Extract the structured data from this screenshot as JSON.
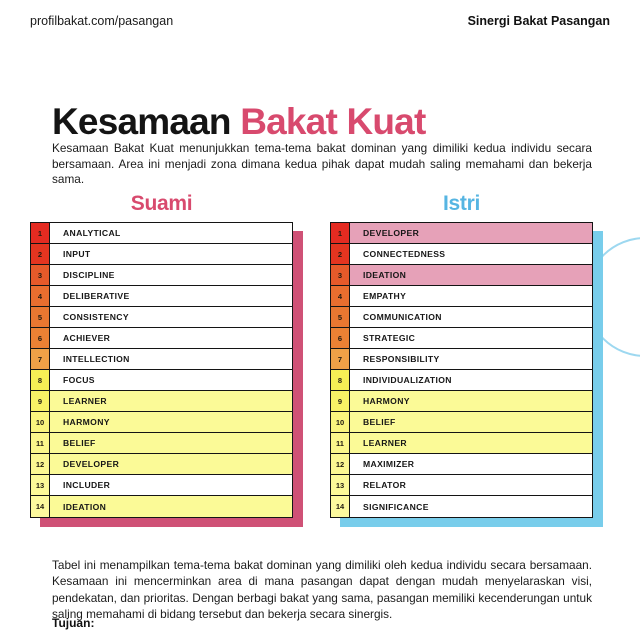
{
  "header": {
    "url": "profilbakat.com/pasangan",
    "doc_title": "Sinergi Bakat Pasangan"
  },
  "title": {
    "part1": "Kesamaan ",
    "part2": "Bakat Kuat",
    "accent_color": "#d84a6e"
  },
  "intro": "Kesamaan Bakat Kuat menunjukkan tema-tema bakat dominan yang dimiliki kedua individu secara bersamaan. Area ini menjadi zona dimana kedua pihak dapat mudah saling memahami dan bekerja sama.",
  "rank_colors": [
    "#e42b21",
    "#e43520",
    "#e65a2a",
    "#e96e2f",
    "#e97731",
    "#eb8134",
    "#efa147",
    "#f6ef55",
    "#f8f266",
    "#faf57d",
    "#fbf78a",
    "#fcf892",
    "#fcf998",
    "#fdfa9e"
  ],
  "highlight_colors": {
    "none": "#ffffff",
    "yellow": "#fbfa97",
    "pink": "#e6a1b8"
  },
  "decor": {
    "circle_color": "#9dd8f0"
  },
  "tables": [
    {
      "label": "Suami",
      "accent_color": "#d84a6e",
      "shadow_color": "#cf5176",
      "rows": [
        {
          "rank": "1",
          "label": "ANALYTICAL",
          "highlight": "none"
        },
        {
          "rank": "2",
          "label": "INPUT",
          "highlight": "none"
        },
        {
          "rank": "3",
          "label": "DISCIPLINE",
          "highlight": "none"
        },
        {
          "rank": "4",
          "label": "DELIBERATIVE",
          "highlight": "none"
        },
        {
          "rank": "5",
          "label": "CONSISTENCY",
          "highlight": "none"
        },
        {
          "rank": "6",
          "label": "ACHIEVER",
          "highlight": "none"
        },
        {
          "rank": "7",
          "label": "INTELLECTION",
          "highlight": "none"
        },
        {
          "rank": "8",
          "label": "FOCUS",
          "highlight": "none"
        },
        {
          "rank": "9",
          "label": "LEARNER",
          "highlight": "yellow"
        },
        {
          "rank": "10",
          "label": "HARMONY",
          "highlight": "yellow"
        },
        {
          "rank": "11",
          "label": "BELIEF",
          "highlight": "yellow"
        },
        {
          "rank": "12",
          "label": "DEVELOPER",
          "highlight": "yellow"
        },
        {
          "rank": "13",
          "label": "INCLUDER",
          "highlight": "none"
        },
        {
          "rank": "14",
          "label": "IDEATION",
          "highlight": "yellow"
        }
      ]
    },
    {
      "label": "Istri",
      "accent_color": "#56b5e2",
      "shadow_color": "#78cdeb",
      "rows": [
        {
          "rank": "1",
          "label": "DEVELOPER",
          "highlight": "pink"
        },
        {
          "rank": "2",
          "label": "CONNECTEDNESS",
          "highlight": "none"
        },
        {
          "rank": "3",
          "label": "IDEATION",
          "highlight": "pink"
        },
        {
          "rank": "4",
          "label": "EMPATHY",
          "highlight": "none"
        },
        {
          "rank": "5",
          "label": "COMMUNICATION",
          "highlight": "none"
        },
        {
          "rank": "6",
          "label": "STRATEGIC",
          "highlight": "none"
        },
        {
          "rank": "7",
          "label": "RESPONSIBILITY",
          "highlight": "none"
        },
        {
          "rank": "8",
          "label": "INDIVIDUALIZATION",
          "highlight": "none"
        },
        {
          "rank": "9",
          "label": "HARMONY",
          "highlight": "yellow"
        },
        {
          "rank": "10",
          "label": "BELIEF",
          "highlight": "yellow"
        },
        {
          "rank": "11",
          "label": "LEARNER",
          "highlight": "yellow"
        },
        {
          "rank": "12",
          "label": "MAXIMIZER",
          "highlight": "none"
        },
        {
          "rank": "13",
          "label": "RELATOR",
          "highlight": "none"
        },
        {
          "rank": "14",
          "label": "SIGNIFICANCE",
          "highlight": "none"
        }
      ]
    }
  ],
  "footer": "Tabel ini menampilkan tema-tema bakat dominan yang dimiliki oleh kedua individu secara bersamaan. Kesamaan ini mencerminkan area di mana pasangan dapat dengan mudah menyelaraskan visi, pendekatan, dan prioritas. Dengan berbagi bakat yang sama, pasangan memiliki kecenderungan untuk saling memahami di bidang tersebut dan bekerja secara sinergis.",
  "tujuan_label": "Tujuan:"
}
